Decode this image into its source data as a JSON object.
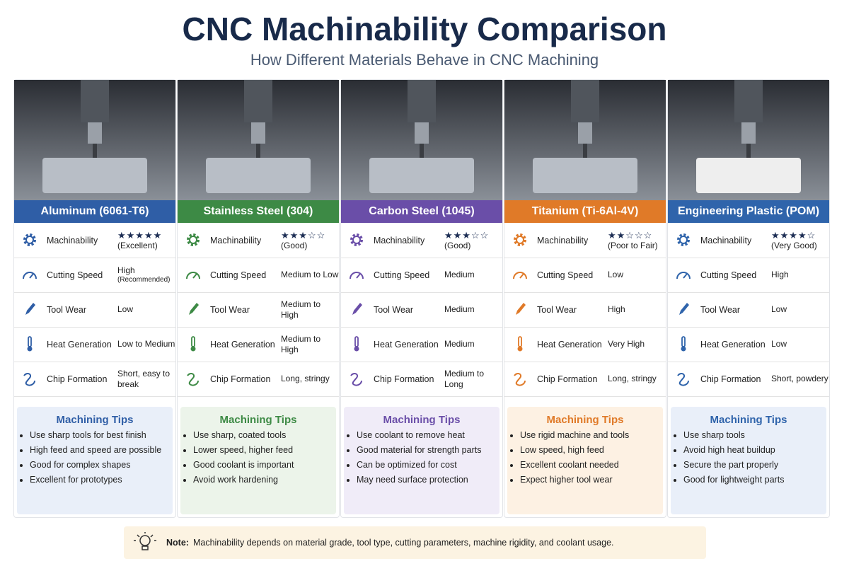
{
  "header": {
    "title": "CNC Machinability Comparison",
    "subtitle": "How Different Materials Behave in CNC Machining"
  },
  "cards": [
    {
      "name": "Aluminum (6061-T6)",
      "color": "#2f5ea6",
      "tint": "#e9eff9",
      "stars": "★★★★★",
      "rows": [
        {
          "label": "Machinability",
          "value": "(Excellent)"
        },
        {
          "label": "Cutting Speed",
          "value": "High",
          "note": "(Recommended)"
        },
        {
          "label": "Tool Wear",
          "value": "Low"
        },
        {
          "label": "Heat Generation",
          "value": "Low to Medium"
        },
        {
          "label": "Chip Formation",
          "value": "Short, easy to break"
        }
      ],
      "tips_title": "Machining Tips",
      "tips": [
        "Use sharp tools for best finish",
        "High feed and speed are possible",
        "Good for complex shapes",
        "Excellent for prototypes"
      ]
    },
    {
      "name": "Stainless Steel (304)",
      "color": "#3d8a45",
      "tint": "#ecf4ea",
      "stars": "★★★☆☆",
      "rows": [
        {
          "label": "Machinability",
          "value": "(Good)"
        },
        {
          "label": "Cutting Speed",
          "value": "Medium to Low"
        },
        {
          "label": "Tool Wear",
          "value": "Medium to High"
        },
        {
          "label": "Heat Generation",
          "value": "Medium to High"
        },
        {
          "label": "Chip Formation",
          "value": "Long, stringy"
        }
      ],
      "tips_title": "Machining Tips",
      "tips": [
        "Use sharp, coated tools",
        "Lower speed, higher feed",
        "Good coolant is important",
        "Avoid work hardening"
      ]
    },
    {
      "name": "Carbon Steel (1045)",
      "color": "#6a4ea8",
      "tint": "#f0ecf8",
      "stars": "★★★☆☆",
      "rows": [
        {
          "label": "Machinability",
          "value": "(Good)"
        },
        {
          "label": "Cutting Speed",
          "value": "Medium"
        },
        {
          "label": "Tool Wear",
          "value": "Medium"
        },
        {
          "label": "Heat Generation",
          "value": "Medium"
        },
        {
          "label": "Chip Formation",
          "value": "Medium to Long"
        }
      ],
      "tips_title": "Machining Tips",
      "tips": [
        "Use coolant to remove heat",
        "Good material for strength parts",
        "Can be optimized for cost",
        "May need surface protection"
      ]
    },
    {
      "name": "Titanium (Ti-6Al-4V)",
      "color": "#e07a28",
      "tint": "#fdf1e3",
      "stars": "★★☆☆☆",
      "rows": [
        {
          "label": "Machinability",
          "value": "(Poor to Fair)"
        },
        {
          "label": "Cutting Speed",
          "value": "Low"
        },
        {
          "label": "Tool Wear",
          "value": "High"
        },
        {
          "label": "Heat Generation",
          "value": "Very High"
        },
        {
          "label": "Chip Formation",
          "value": "Long, stringy"
        }
      ],
      "tips_title": "Machining Tips",
      "tips": [
        "Use rigid machine and tools",
        "Low speed, high feed",
        "Excellent coolant needed",
        "Expect higher tool wear"
      ]
    },
    {
      "name": "Engineering Plastic (POM)",
      "color": "#2f64ab",
      "tint": "#e9eff9",
      "stars": "★★★★☆",
      "rows": [
        {
          "label": "Machinability",
          "value": "(Very Good)"
        },
        {
          "label": "Cutting Speed",
          "value": "High"
        },
        {
          "label": "Tool Wear",
          "value": "Low"
        },
        {
          "label": "Heat Generation",
          "value": "Low"
        },
        {
          "label": "Chip Formation",
          "value": "Short, powdery"
        }
      ],
      "tips_title": "Machining Tips",
      "tips": [
        "Use sharp tools",
        "Avoid high heat buildup",
        "Secure the part properly",
        "Good for lightweight parts"
      ]
    }
  ],
  "note": {
    "label": "Note:",
    "text": "Machinability depends on material grade, tool type, cutting parameters, machine rigidity, and coolant usage."
  }
}
